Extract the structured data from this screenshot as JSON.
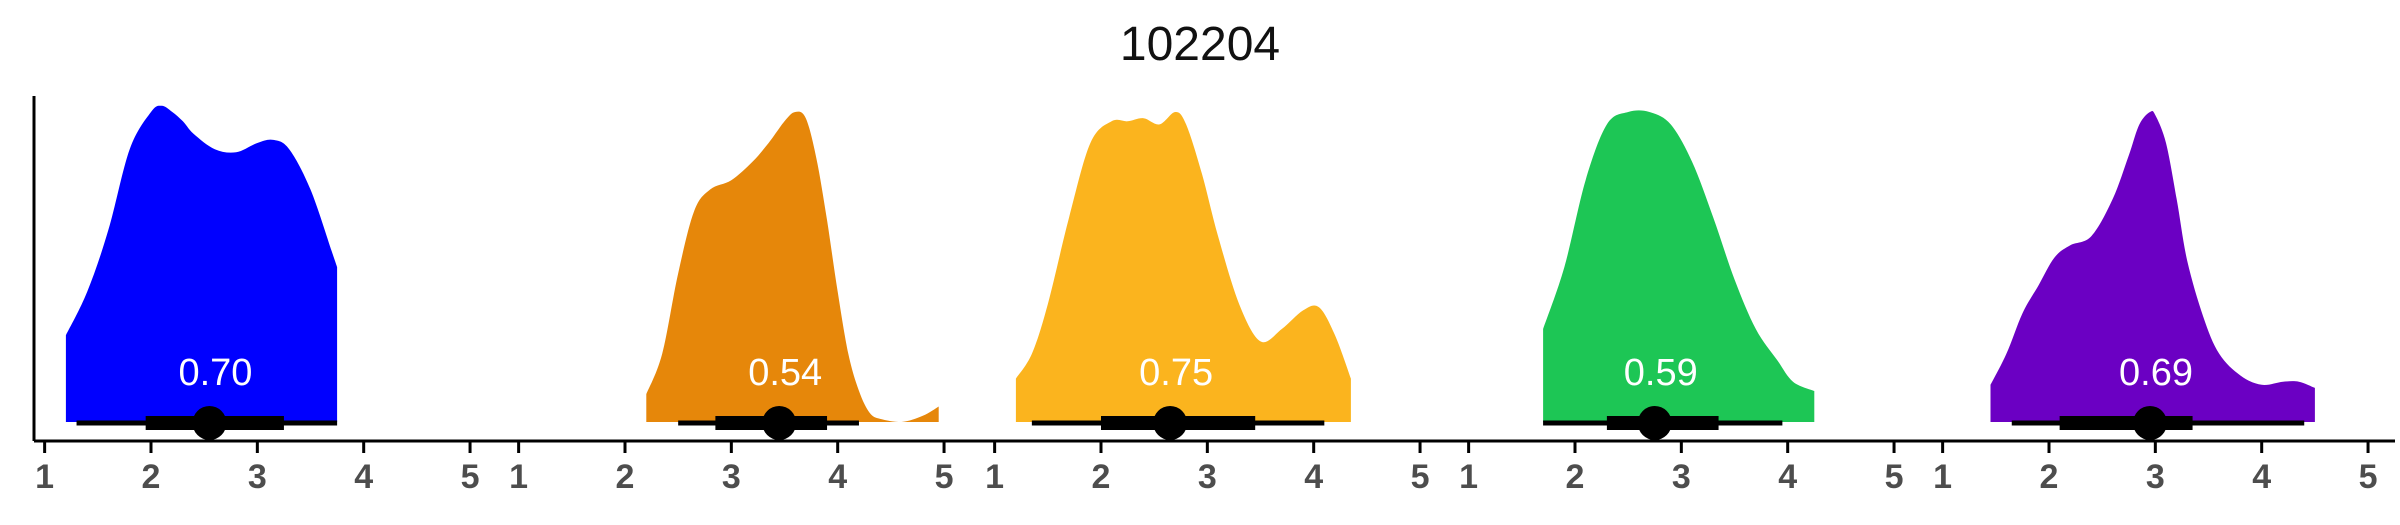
{
  "chart_data": {
    "type": "density",
    "title": "102204",
    "x_ticks": [
      1,
      2,
      3,
      4,
      5
    ],
    "xlim": [
      0.9,
      5.15
    ],
    "y_axis_visible": true,
    "y_tick_labels": false,
    "grid": false,
    "legend": "none",
    "panels": [
      {
        "color": "#0000ff",
        "label": "0.70",
        "median": 2.55,
        "interval_66": [
          1.95,
          3.25
        ],
        "interval_95": [
          1.3,
          3.75
        ],
        "x": [
          1.2,
          1.4,
          1.6,
          1.8,
          2.0,
          2.1,
          2.2,
          2.3,
          2.4,
          2.6,
          2.8,
          3.0,
          3.15,
          3.3,
          3.5,
          3.7,
          3.75
        ],
        "density": [
          0.28,
          0.42,
          0.62,
          0.88,
          1.0,
          1.02,
          1.0,
          0.97,
          0.93,
          0.88,
          0.87,
          0.9,
          0.91,
          0.88,
          0.75,
          0.55,
          0.5
        ]
      },
      {
        "color": "#e6870a",
        "label": "0.54",
        "median": 3.45,
        "interval_66": [
          2.85,
          3.9
        ],
        "interval_95": [
          2.5,
          4.2
        ],
        "x": [
          2.2,
          2.35,
          2.5,
          2.65,
          2.8,
          3.0,
          3.2,
          3.35,
          3.5,
          3.6,
          3.7,
          3.8,
          3.9,
          4.0,
          4.1,
          4.2,
          4.3,
          4.4,
          4.6,
          4.8,
          4.95
        ],
        "density": [
          0.09,
          0.22,
          0.48,
          0.68,
          0.75,
          0.78,
          0.84,
          0.9,
          0.97,
          1.0,
          0.98,
          0.85,
          0.65,
          0.42,
          0.22,
          0.1,
          0.03,
          0.01,
          0.0,
          0.02,
          0.05
        ]
      },
      {
        "color": "#fbb41e",
        "label": "0.75",
        "median": 2.65,
        "interval_66": [
          2.0,
          3.45
        ],
        "interval_95": [
          1.35,
          4.1
        ],
        "x": [
          1.2,
          1.35,
          1.5,
          1.7,
          1.9,
          2.1,
          2.25,
          2.4,
          2.55,
          2.7,
          2.8,
          2.95,
          3.1,
          3.3,
          3.5,
          3.7,
          3.9,
          4.05,
          4.2,
          4.35
        ],
        "density": [
          0.14,
          0.22,
          0.38,
          0.66,
          0.9,
          0.97,
          0.97,
          0.98,
          0.96,
          1.0,
          0.96,
          0.8,
          0.6,
          0.38,
          0.26,
          0.3,
          0.36,
          0.37,
          0.28,
          0.14
        ]
      },
      {
        "color": "#1dc655",
        "label": "0.59",
        "median": 2.75,
        "interval_66": [
          2.3,
          3.35
        ],
        "interval_95": [
          1.7,
          3.95
        ],
        "x": [
          1.7,
          1.9,
          2.1,
          2.3,
          2.5,
          2.7,
          2.9,
          3.1,
          3.3,
          3.5,
          3.7,
          3.9,
          4.05,
          4.25
        ],
        "density": [
          0.3,
          0.5,
          0.78,
          0.96,
          1.0,
          1.0,
          0.96,
          0.84,
          0.66,
          0.46,
          0.3,
          0.2,
          0.13,
          0.1
        ]
      },
      {
        "color": "#6b00c3",
        "label": "0.69",
        "median": 2.95,
        "interval_66": [
          2.1,
          3.35
        ],
        "interval_95": [
          1.65,
          4.4
        ],
        "x": [
          1.45,
          1.6,
          1.75,
          1.9,
          2.05,
          2.2,
          2.4,
          2.6,
          2.75,
          2.85,
          2.95,
          3.0,
          3.1,
          3.2,
          3.3,
          3.45,
          3.6,
          3.8,
          4.0,
          4.2,
          4.35,
          4.5
        ],
        "density": [
          0.12,
          0.22,
          0.35,
          0.44,
          0.53,
          0.57,
          0.6,
          0.72,
          0.86,
          0.96,
          1.0,
          0.99,
          0.9,
          0.72,
          0.52,
          0.34,
          0.22,
          0.15,
          0.12,
          0.13,
          0.13,
          0.11
        ]
      }
    ]
  }
}
